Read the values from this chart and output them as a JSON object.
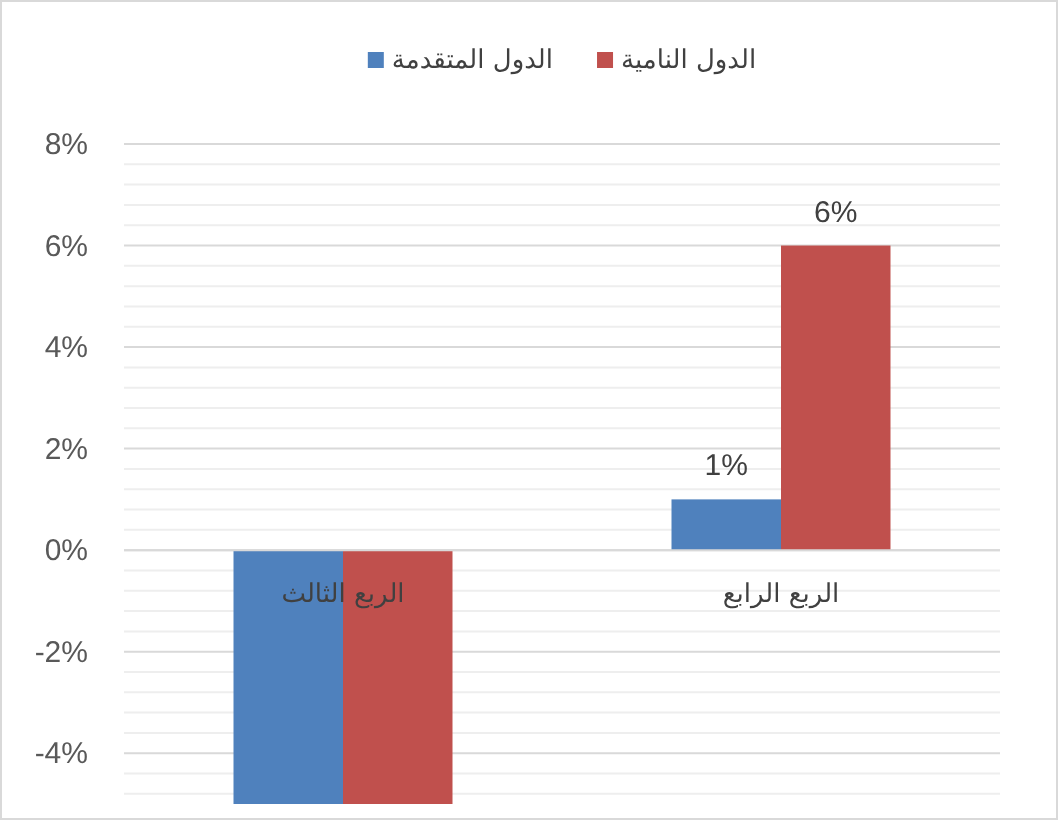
{
  "chart_data": {
    "type": "bar",
    "categories": [
      "الربع الثالث",
      "الربع الرابع"
    ],
    "series": [
      {
        "name": "الدول المتقدمة",
        "color": "#4f81bd",
        "values": [
          -5,
          1
        ],
        "value_labels": [
          null,
          "1%"
        ]
      },
      {
        "name": "الدول النامية",
        "color": "#c0504d",
        "values": [
          -5,
          6
        ],
        "value_labels": [
          null,
          "6%"
        ]
      }
    ],
    "ylim": [
      -5,
      8
    ],
    "yticks": [
      {
        "value": -4,
        "label": "-4%"
      },
      {
        "value": -2,
        "label": "-2%"
      },
      {
        "value": 0,
        "label": "0%"
      },
      {
        "value": 2,
        "label": "2%"
      },
      {
        "value": 4,
        "label": "4%"
      },
      {
        "value": 6,
        "label": "6%"
      },
      {
        "value": 8,
        "label": "8%"
      }
    ],
    "grid": "y",
    "legend": "top"
  }
}
